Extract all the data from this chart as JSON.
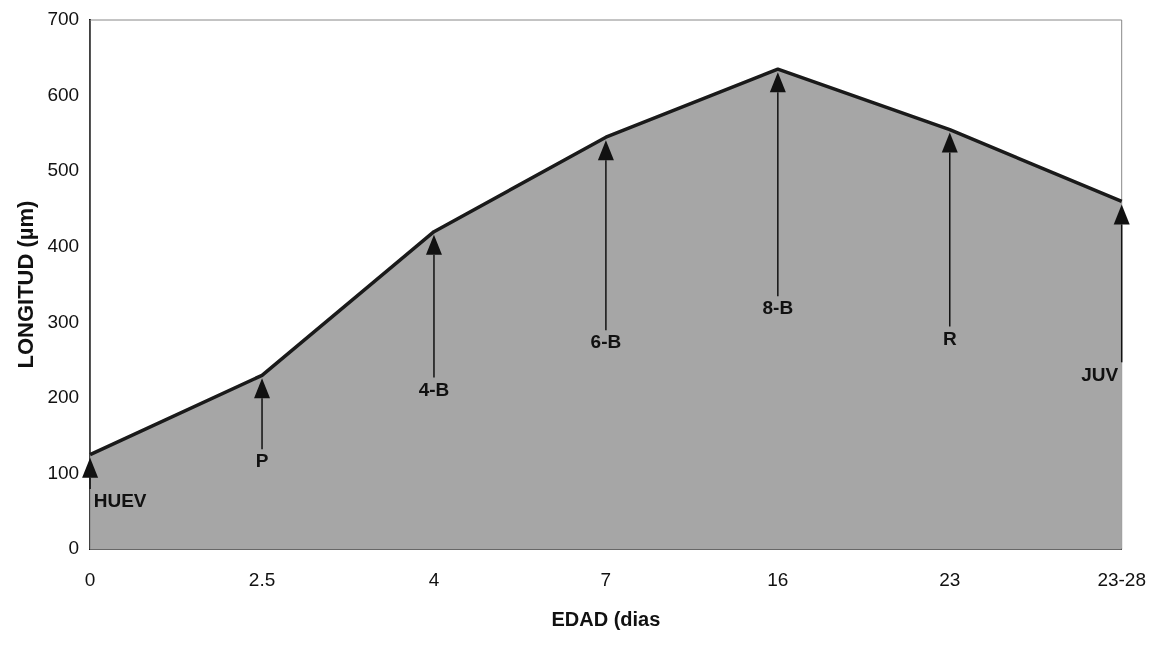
{
  "chart_data": {
    "type": "area",
    "xlabel": "EDAD (dias",
    "ylabel": "LONGITUD (µm)",
    "categories": [
      "0",
      "2.5",
      "4",
      "7",
      "16",
      "23",
      "23-28"
    ],
    "series": [
      {
        "color": "#a6a6a6",
        "values": [
          125,
          230,
          420,
          545,
          635,
          555,
          460
        ]
      }
    ],
    "ylim": [
      0,
      700
    ],
    "yticks": [
      0,
      100,
      200,
      300,
      400,
      500,
      600,
      700
    ],
    "grid": false,
    "legend": false,
    "marker": "none",
    "line_style": "solid",
    "annotations": [
      "HUEV",
      "P",
      "4-B",
      "6-B",
      "8-B",
      "R",
      "JUV"
    ]
  }
}
